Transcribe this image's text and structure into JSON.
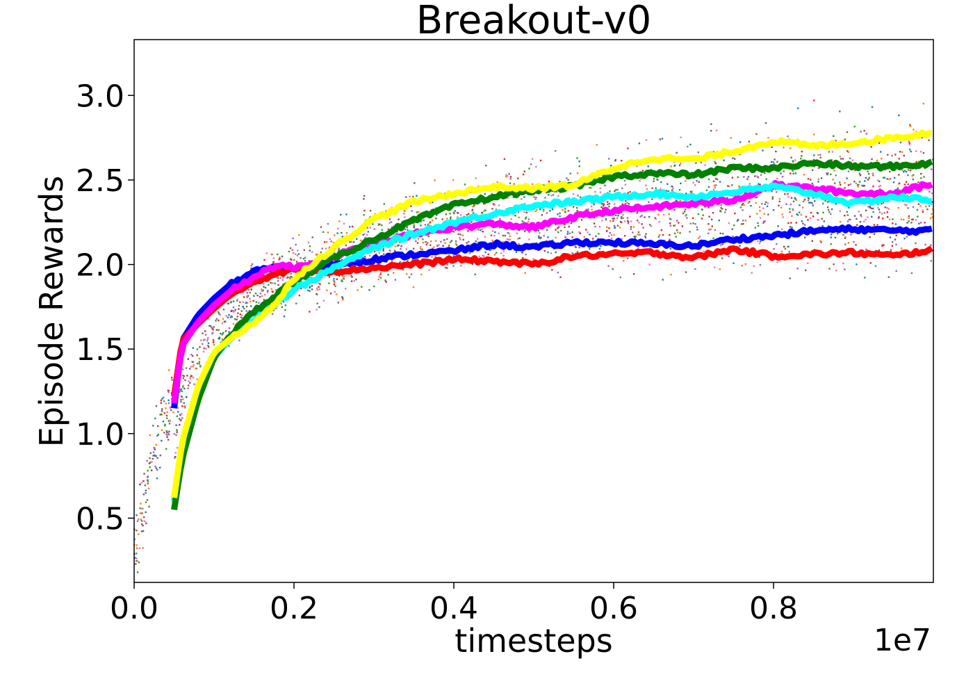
{
  "chart_data": {
    "type": "line",
    "title": "Breakout-v0",
    "xlabel": "timesteps",
    "ylabel": "Episode Rewards",
    "x_offset_text": "1e7",
    "xlim": [
      0,
      1.0
    ],
    "ylim": [
      0.12,
      3.33
    ],
    "x_ticks": [
      0.0,
      0.2,
      0.4,
      0.6,
      0.8
    ],
    "x_tick_labels": [
      "0.0",
      "0.2",
      "0.4",
      "0.6",
      "0.8"
    ],
    "y_ticks": [
      0.5,
      1.0,
      1.5,
      2.0,
      2.5,
      3.0
    ],
    "y_tick_labels": [
      "0.5",
      "1.0",
      "1.5",
      "2.0",
      "2.5",
      "3.0"
    ],
    "grid": false,
    "series": [
      {
        "color": "#0000ff",
        "x": [
          0.05,
          0.06,
          0.08,
          0.1,
          0.12,
          0.15,
          0.18,
          0.2,
          0.25,
          0.3,
          0.35,
          0.4,
          0.45,
          0.5,
          0.55,
          0.6,
          0.65,
          0.7,
          0.75,
          0.8,
          0.85,
          0.9,
          0.95,
          1.0
        ],
        "y": [
          1.15,
          1.55,
          1.7,
          1.8,
          1.88,
          1.96,
          1.98,
          1.98,
          2.0,
          2.03,
          2.06,
          2.08,
          2.12,
          2.1,
          2.13,
          2.13,
          2.12,
          2.11,
          2.15,
          2.17,
          2.2,
          2.21,
          2.2,
          2.2
        ]
      },
      {
        "color": "#ff0000",
        "x": [
          0.05,
          0.06,
          0.08,
          0.1,
          0.12,
          0.15,
          0.18,
          0.2,
          0.25,
          0.3,
          0.35,
          0.4,
          0.45,
          0.5,
          0.55,
          0.6,
          0.65,
          0.7,
          0.75,
          0.8,
          0.85,
          0.9,
          0.95,
          1.0
        ],
        "y": [
          1.22,
          1.55,
          1.65,
          1.74,
          1.82,
          1.9,
          1.95,
          1.97,
          1.96,
          1.98,
          2.0,
          2.03,
          2.02,
          2.0,
          2.05,
          2.06,
          2.07,
          2.04,
          2.09,
          2.05,
          2.06,
          2.07,
          2.05,
          2.09
        ]
      },
      {
        "color": "#ff00ff",
        "x": [
          0.05,
          0.06,
          0.08,
          0.1,
          0.12,
          0.15,
          0.18,
          0.2,
          0.25,
          0.3,
          0.35,
          0.4,
          0.45,
          0.5,
          0.55,
          0.6,
          0.65,
          0.7,
          0.75,
          0.8,
          0.85,
          0.9,
          0.95,
          1.0
        ],
        "y": [
          1.18,
          1.52,
          1.66,
          1.76,
          1.84,
          1.93,
          2.0,
          1.98,
          2.05,
          2.12,
          2.18,
          2.22,
          2.24,
          2.22,
          2.28,
          2.32,
          2.34,
          2.36,
          2.38,
          2.47,
          2.45,
          2.42,
          2.42,
          2.48
        ]
      },
      {
        "color": "#00ffff",
        "x": [
          0.05,
          0.06,
          0.08,
          0.1,
          0.12,
          0.15,
          0.18,
          0.2,
          0.25,
          0.3,
          0.35,
          0.4,
          0.45,
          0.5,
          0.55,
          0.6,
          0.65,
          0.7,
          0.75,
          0.8,
          0.85,
          0.9,
          0.95,
          1.0
        ],
        "y": [
          0.6,
          0.9,
          1.25,
          1.45,
          1.56,
          1.68,
          1.78,
          1.85,
          1.98,
          2.1,
          2.18,
          2.25,
          2.3,
          2.35,
          2.37,
          2.4,
          2.42,
          2.4,
          2.43,
          2.46,
          2.42,
          2.36,
          2.4,
          2.38
        ]
      },
      {
        "color": "#008000",
        "x": [
          0.05,
          0.06,
          0.08,
          0.1,
          0.12,
          0.15,
          0.18,
          0.2,
          0.25,
          0.3,
          0.35,
          0.4,
          0.45,
          0.5,
          0.55,
          0.6,
          0.65,
          0.7,
          0.75,
          0.8,
          0.85,
          0.9,
          0.95,
          1.0
        ],
        "y": [
          0.55,
          0.85,
          1.2,
          1.45,
          1.58,
          1.72,
          1.83,
          1.9,
          2.04,
          2.15,
          2.26,
          2.35,
          2.4,
          2.44,
          2.46,
          2.52,
          2.54,
          2.53,
          2.57,
          2.57,
          2.6,
          2.58,
          2.58,
          2.6
        ]
      },
      {
        "color": "#ffff00",
        "x": [
          0.05,
          0.06,
          0.08,
          0.1,
          0.12,
          0.15,
          0.18,
          0.2,
          0.25,
          0.3,
          0.35,
          0.4,
          0.45,
          0.5,
          0.55,
          0.6,
          0.65,
          0.7,
          0.75,
          0.8,
          0.85,
          0.9,
          0.95,
          1.0
        ],
        "y": [
          0.62,
          0.95,
          1.28,
          1.48,
          1.56,
          1.66,
          1.78,
          1.92,
          2.1,
          2.27,
          2.37,
          2.42,
          2.46,
          2.45,
          2.47,
          2.57,
          2.63,
          2.62,
          2.67,
          2.73,
          2.7,
          2.72,
          2.75,
          2.78
        ]
      }
    ],
    "scatter_colors": [
      "#1f77b4",
      "#ff7f0e",
      "#2ca02c",
      "#d62728",
      "#9467bd",
      "#8c564b",
      "#e377c2"
    ]
  }
}
